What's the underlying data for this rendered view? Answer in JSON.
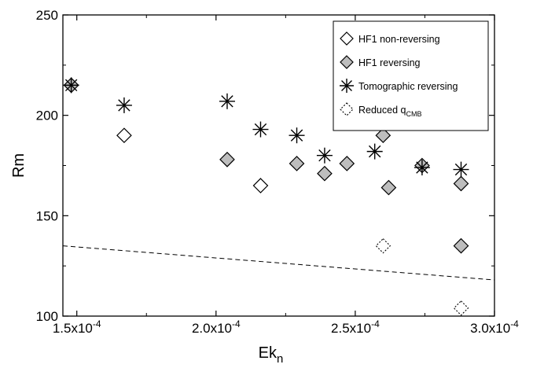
{
  "chart_data": {
    "type": "scatter",
    "xlabel": "Ek",
    "xlabel_sub": "n",
    "ylabel": "Rm",
    "xlim": [
      0.000145,
      0.0003
    ],
    "ylim": [
      100,
      250
    ],
    "x_ticks": [
      {
        "value": 0.00015,
        "mantissa": "1.5x10",
        "exp": "-4"
      },
      {
        "value": 0.0002,
        "mantissa": "2.0x10",
        "exp": "-4"
      },
      {
        "value": 0.00025,
        "mantissa": "2.5x10",
        "exp": "-4"
      },
      {
        "value": 0.0003,
        "mantissa": "3.0x10",
        "exp": "-4"
      }
    ],
    "y_ticks": [
      {
        "value": 100,
        "label": "100"
      },
      {
        "value": 150,
        "label": "150"
      },
      {
        "value": 200,
        "label": "200"
      },
      {
        "value": 250,
        "label": "250"
      }
    ],
    "legend": {
      "placement": "top-right",
      "entries": [
        {
          "label": "HF1 non-reversing",
          "marker": "diamond-open"
        },
        {
          "label": "HF1 reversing",
          "marker": "diamond-gray"
        },
        {
          "label": "Tomographic reversing",
          "marker": "asterisk"
        },
        {
          "label": "Reduced  q",
          "sub": "CMB",
          "marker": "diamond-dotted"
        }
      ]
    },
    "series": [
      {
        "name": "HF1 non-reversing",
        "marker": "diamond-open",
        "points": [
          [
            0.000148,
            215
          ],
          [
            0.000167,
            190
          ],
          [
            0.000216,
            165
          ]
        ]
      },
      {
        "name": "HF1 reversing",
        "marker": "diamond-gray",
        "points": [
          [
            0.000148,
            215
          ],
          [
            0.000204,
            178
          ],
          [
            0.000229,
            176
          ],
          [
            0.000239,
            171
          ],
          [
            0.000247,
            176
          ],
          [
            0.00026,
            190
          ],
          [
            0.000262,
            164
          ],
          [
            0.000274,
            175
          ],
          [
            0.000288,
            166
          ]
        ]
      },
      {
        "name": "Tomographic reversing",
        "marker": "asterisk",
        "points": [
          [
            0.000148,
            215
          ],
          [
            0.000167,
            205
          ],
          [
            0.000204,
            207
          ],
          [
            0.000216,
            193
          ],
          [
            0.000229,
            190
          ],
          [
            0.000239,
            180
          ],
          [
            0.000257,
            182
          ],
          [
            0.000274,
            174
          ],
          [
            0.000288,
            173
          ]
        ]
      },
      {
        "name": "Reduced qCMB",
        "marker": "diamond-dotted",
        "points": [
          [
            0.00026,
            135
          ],
          [
            0.000288,
            135
          ],
          [
            0.000288,
            104
          ]
        ]
      },
      {
        "name": "Reduced qCMB (HF1 reversing)",
        "marker": "diamond-gray",
        "points": [
          [
            0.000288,
            135
          ]
        ]
      }
    ],
    "reference_line": {
      "style": "dashed",
      "points": [
        [
          0.000145,
          135
        ],
        [
          0.0003,
          118
        ]
      ]
    }
  }
}
